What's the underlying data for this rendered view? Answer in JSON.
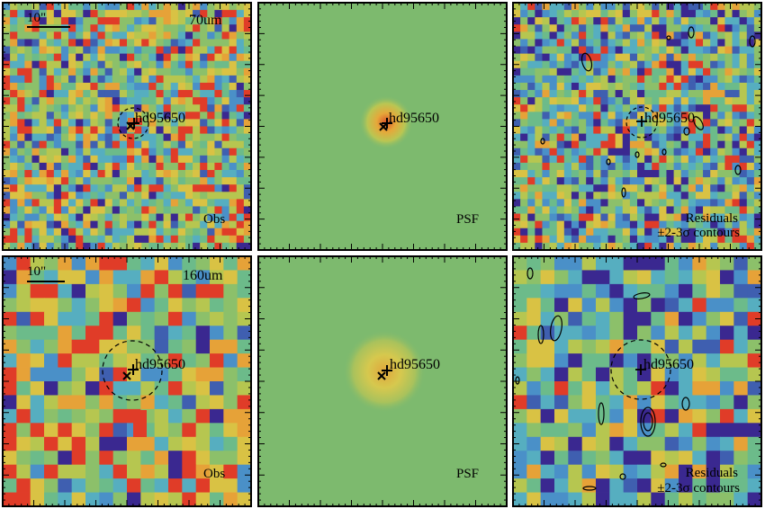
{
  "figure": {
    "rows": [
      {
        "band_label": "70um",
        "scale_bar_label": "10\"",
        "panels": [
          {
            "kind": "observed",
            "corner_label": "Obs",
            "source_label": "hd95650"
          },
          {
            "kind": "psf",
            "corner_label": "PSF",
            "source_label": "hd95650"
          },
          {
            "kind": "residuals",
            "corner_label_line1": "Residuals",
            "corner_label_line2": "±2-3σ contours",
            "source_label": "hd95650"
          }
        ]
      },
      {
        "band_label": "160um",
        "scale_bar_label": "10\"",
        "panels": [
          {
            "kind": "observed",
            "corner_label": "Obs",
            "source_label": "hd95650"
          },
          {
            "kind": "psf",
            "corner_label": "PSF",
            "source_label": "hd95650"
          },
          {
            "kind": "residuals",
            "corner_label_line1": "Residuals",
            "corner_label_line2": "±2-3σ contours",
            "source_label": "hd95650"
          }
        ]
      }
    ],
    "colors": {
      "background_green": "#7dba6e",
      "psf_core": "#e05a2a",
      "psf_halo": "#e9c23d",
      "hot_pixel": "#e03c28",
      "cold_pixel": "#3a2890",
      "frame": "#000000"
    }
  }
}
